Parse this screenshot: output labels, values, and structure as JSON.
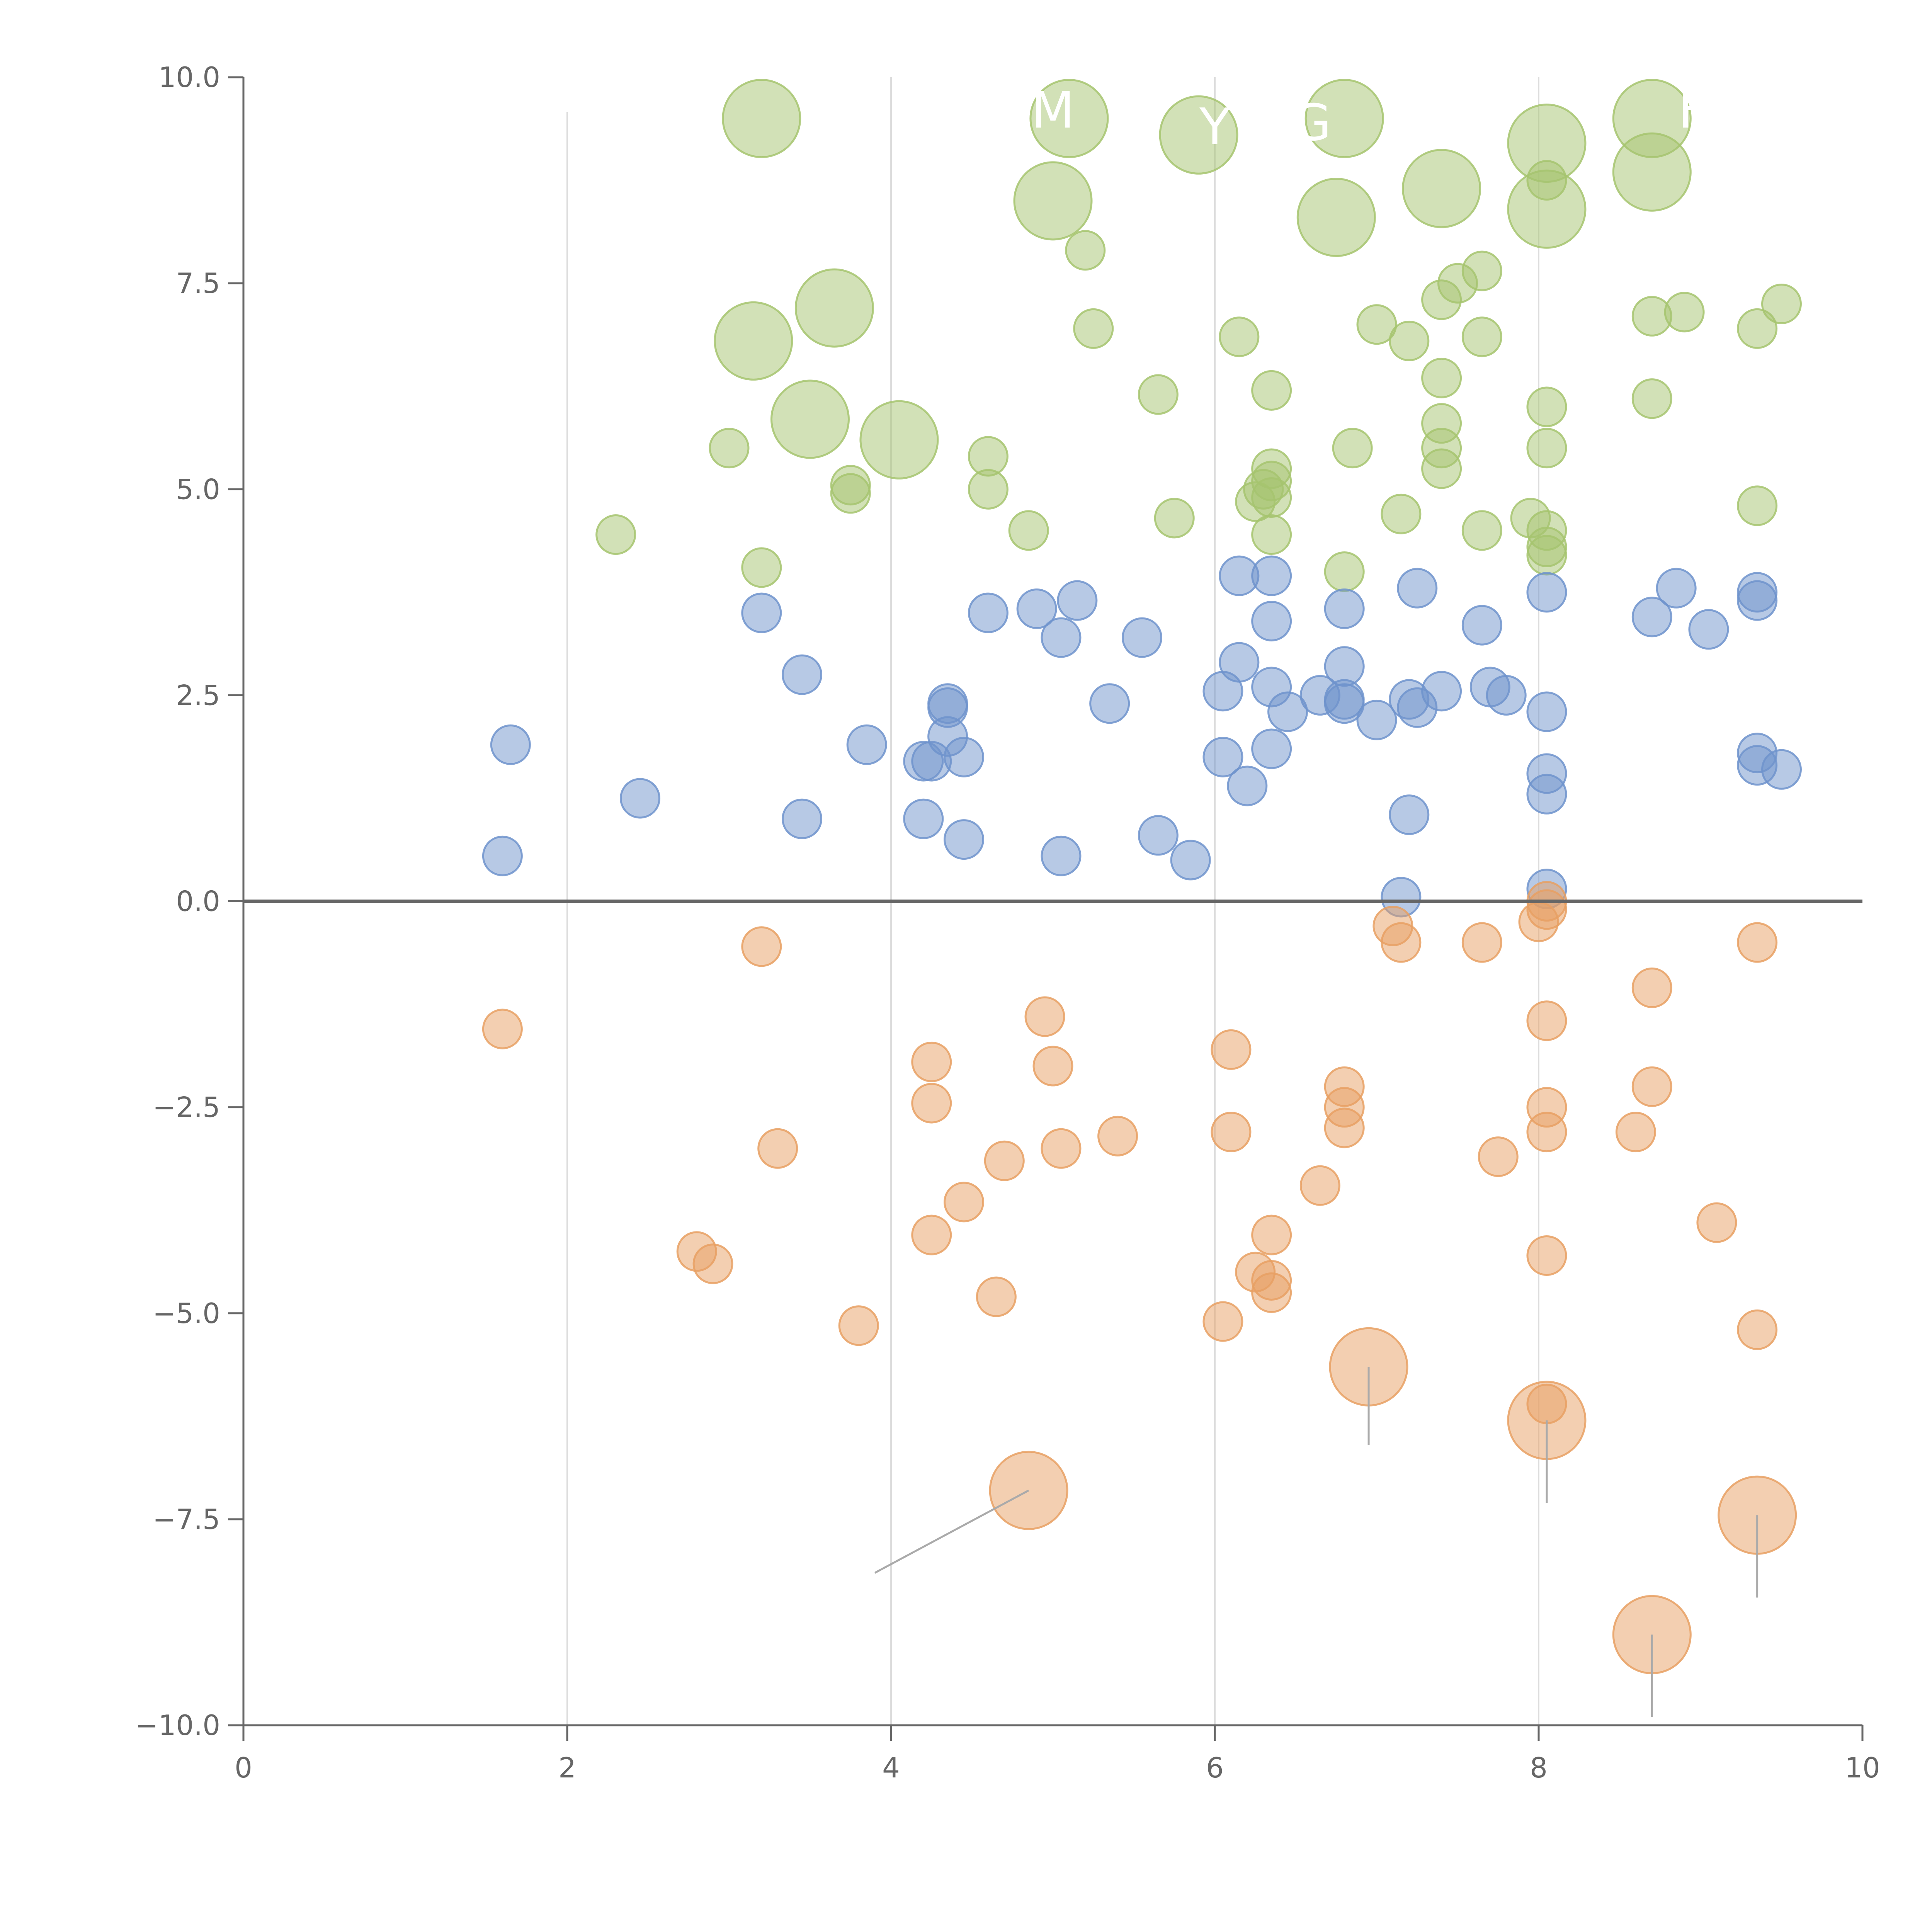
{
  "chart_data": {
    "type": "scatter",
    "title": "",
    "xlabel": "",
    "ylabel": "",
    "xlim": [
      0,
      10
    ],
    "ylim": [
      -10,
      10
    ],
    "x_ticks": [
      "0",
      "2",
      "4",
      "6",
      "8",
      "10"
    ],
    "y_ticks": [
      "−10.0",
      "−7.5",
      "−5.0",
      "−2.5",
      "0.0",
      "2.5",
      "5.0",
      "7.5",
      "10.0"
    ],
    "x_tick_values": [
      0,
      2,
      4,
      6,
      8,
      10
    ],
    "y_tick_values": [
      -10,
      -7.5,
      -5,
      -2.5,
      0,
      2.5,
      5,
      7.5,
      10
    ],
    "vertical_gridlines_at": [
      2,
      4,
      6,
      8
    ],
    "zero_line": 0,
    "colors": {
      "positive_high": "#a6c46f",
      "positive_low": "#6f93cc",
      "negative": "#e8a063",
      "axis": "#666666",
      "grid": "#dddddd",
      "label_leader": "#aaaaaa"
    },
    "series": [
      {
        "name": "green",
        "color": "#a6c46f",
        "points": [
          {
            "x": 3.2,
            "y": 9.5,
            "r": 3
          },
          {
            "x": 5.1,
            "y": 9.5,
            "r": 3
          },
          {
            "x": 5.9,
            "y": 9.3,
            "r": 3
          },
          {
            "x": 6.8,
            "y": 9.5,
            "r": 3
          },
          {
            "x": 8.05,
            "y": 9.2,
            "r": 3
          },
          {
            "x": 8.7,
            "y": 9.5,
            "r": 3
          },
          {
            "x": 8.7,
            "y": 8.85,
            "r": 3
          },
          {
            "x": 5.0,
            "y": 8.5,
            "r": 3
          },
          {
            "x": 7.4,
            "y": 8.65,
            "r": 3
          },
          {
            "x": 8.05,
            "y": 8.4,
            "r": 3
          },
          {
            "x": 6.75,
            "y": 8.3,
            "r": 3
          },
          {
            "x": 8.05,
            "y": 8.75,
            "r": 1
          },
          {
            "x": 5.2,
            "y": 7.9,
            "r": 1
          },
          {
            "x": 3.65,
            "y": 7.2,
            "r": 3
          },
          {
            "x": 3.15,
            "y": 6.8,
            "r": 3
          },
          {
            "x": 5.25,
            "y": 6.95,
            "r": 1
          },
          {
            "x": 6.15,
            "y": 6.85,
            "r": 1
          },
          {
            "x": 7.0,
            "y": 7.0,
            "r": 1
          },
          {
            "x": 7.2,
            "y": 6.8,
            "r": 1
          },
          {
            "x": 7.4,
            "y": 7.3,
            "r": 1
          },
          {
            "x": 7.5,
            "y": 7.5,
            "r": 1
          },
          {
            "x": 7.65,
            "y": 7.65,
            "r": 1
          },
          {
            "x": 7.65,
            "y": 6.85,
            "r": 1
          },
          {
            "x": 8.7,
            "y": 7.1,
            "r": 1
          },
          {
            "x": 8.9,
            "y": 7.15,
            "r": 1
          },
          {
            "x": 9.35,
            "y": 6.95,
            "r": 1
          },
          {
            "x": 9.5,
            "y": 7.25,
            "r": 1
          },
          {
            "x": 3.5,
            "y": 5.85,
            "r": 3
          },
          {
            "x": 4.05,
            "y": 5.6,
            "r": 3
          },
          {
            "x": 3.0,
            "y": 5.5,
            "r": 1
          },
          {
            "x": 5.65,
            "y": 6.15,
            "r": 1
          },
          {
            "x": 6.35,
            "y": 6.2,
            "r": 1
          },
          {
            "x": 7.4,
            "y": 6.35,
            "r": 1
          },
          {
            "x": 8.05,
            "y": 6.0,
            "r": 1
          },
          {
            "x": 8.7,
            "y": 6.1,
            "r": 1
          },
          {
            "x": 7.4,
            "y": 5.8,
            "r": 1
          },
          {
            "x": 6.85,
            "y": 5.5,
            "r": 1
          },
          {
            "x": 7.4,
            "y": 5.5,
            "r": 1
          },
          {
            "x": 8.05,
            "y": 5.5,
            "r": 1
          },
          {
            "x": 4.6,
            "y": 5.4,
            "r": 1
          },
          {
            "x": 3.75,
            "y": 5.05,
            "r": 1
          },
          {
            "x": 3.75,
            "y": 4.95,
            "r": 1
          },
          {
            "x": 4.6,
            "y": 5.0,
            "r": 1
          },
          {
            "x": 6.35,
            "y": 5.25,
            "r": 1
          },
          {
            "x": 6.35,
            "y": 5.1,
            "r": 1
          },
          {
            "x": 6.3,
            "y": 5.0,
            "r": 1
          },
          {
            "x": 6.35,
            "y": 4.9,
            "r": 1
          },
          {
            "x": 6.25,
            "y": 4.85,
            "r": 1
          },
          {
            "x": 7.4,
            "y": 5.25,
            "r": 1
          },
          {
            "x": 2.3,
            "y": 4.45,
            "r": 1
          },
          {
            "x": 4.85,
            "y": 4.5,
            "r": 1
          },
          {
            "x": 5.75,
            "y": 4.65,
            "r": 1
          },
          {
            "x": 6.35,
            "y": 4.45,
            "r": 1
          },
          {
            "x": 7.15,
            "y": 4.7,
            "r": 1
          },
          {
            "x": 7.65,
            "y": 4.5,
            "r": 1
          },
          {
            "x": 7.95,
            "y": 4.65,
            "r": 1
          },
          {
            "x": 8.05,
            "y": 4.5,
            "r": 1
          },
          {
            "x": 8.05,
            "y": 4.3,
            "r": 1
          },
          {
            "x": 8.05,
            "y": 4.2,
            "r": 1
          },
          {
            "x": 9.35,
            "y": 4.8,
            "r": 1
          },
          {
            "x": 3.2,
            "y": 4.05,
            "r": 1
          },
          {
            "x": 6.8,
            "y": 4.0,
            "r": 1
          }
        ]
      },
      {
        "name": "blue",
        "color": "#6f93cc",
        "points": [
          {
            "x": 1.65,
            "y": 1.9,
            "r": 1
          },
          {
            "x": 1.6,
            "y": 0.55,
            "r": 1
          },
          {
            "x": 2.45,
            "y": 1.25,
            "r": 1
          },
          {
            "x": 3.2,
            "y": 3.5,
            "r": 1
          },
          {
            "x": 3.45,
            "y": 2.75,
            "r": 1
          },
          {
            "x": 3.45,
            "y": 1.0,
            "r": 1
          },
          {
            "x": 3.85,
            "y": 1.9,
            "r": 1
          },
          {
            "x": 4.2,
            "y": 1.7,
            "r": 1
          },
          {
            "x": 4.25,
            "y": 1.7,
            "r": 1
          },
          {
            "x": 4.2,
            "y": 1.0,
            "r": 1
          },
          {
            "x": 4.35,
            "y": 2.4,
            "r": 1
          },
          {
            "x": 4.35,
            "y": 2.35,
            "r": 1
          },
          {
            "x": 4.35,
            "y": 2.0,
            "r": 1
          },
          {
            "x": 4.45,
            "y": 1.75,
            "r": 1
          },
          {
            "x": 4.45,
            "y": 0.75,
            "r": 1
          },
          {
            "x": 4.6,
            "y": 3.5,
            "r": 1
          },
          {
            "x": 4.9,
            "y": 3.55,
            "r": 1
          },
          {
            "x": 5.05,
            "y": 3.2,
            "r": 1
          },
          {
            "x": 5.15,
            "y": 3.65,
            "r": 1
          },
          {
            "x": 5.05,
            "y": 0.55,
            "r": 1
          },
          {
            "x": 5.35,
            "y": 2.4,
            "r": 1
          },
          {
            "x": 5.55,
            "y": 3.2,
            "r": 1
          },
          {
            "x": 5.65,
            "y": 0.8,
            "r": 1
          },
          {
            "x": 5.85,
            "y": 0.5,
            "r": 1
          },
          {
            "x": 6.05,
            "y": 2.55,
            "r": 1
          },
          {
            "x": 6.05,
            "y": 1.75,
            "r": 1
          },
          {
            "x": 6.15,
            "y": 3.95,
            "r": 1
          },
          {
            "x": 6.15,
            "y": 2.9,
            "r": 1
          },
          {
            "x": 6.2,
            "y": 1.4,
            "r": 1
          },
          {
            "x": 6.35,
            "y": 3.95,
            "r": 1
          },
          {
            "x": 6.35,
            "y": 3.4,
            "r": 1
          },
          {
            "x": 6.35,
            "y": 2.6,
            "r": 1
          },
          {
            "x": 6.45,
            "y": 2.3,
            "r": 1
          },
          {
            "x": 6.35,
            "y": 1.85,
            "r": 1
          },
          {
            "x": 6.65,
            "y": 2.5,
            "r": 1
          },
          {
            "x": 6.8,
            "y": 3.55,
            "r": 1
          },
          {
            "x": 6.8,
            "y": 2.85,
            "r": 1
          },
          {
            "x": 6.8,
            "y": 2.45,
            "r": 1
          },
          {
            "x": 6.8,
            "y": 2.4,
            "r": 1
          },
          {
            "x": 7.0,
            "y": 2.2,
            "r": 1
          },
          {
            "x": 7.2,
            "y": 1.05,
            "r": 1
          },
          {
            "x": 7.25,
            "y": 3.8,
            "r": 1
          },
          {
            "x": 7.2,
            "y": 2.45,
            "r": 1
          },
          {
            "x": 7.25,
            "y": 2.35,
            "r": 1
          },
          {
            "x": 7.4,
            "y": 2.55,
            "r": 1
          },
          {
            "x": 7.65,
            "y": 3.35,
            "r": 1
          },
          {
            "x": 7.7,
            "y": 2.6,
            "r": 1
          },
          {
            "x": 7.8,
            "y": 2.5,
            "r": 1
          },
          {
            "x": 7.15,
            "y": 0.05,
            "r": 1
          },
          {
            "x": 8.05,
            "y": 3.75,
            "r": 1
          },
          {
            "x": 8.05,
            "y": 2.3,
            "r": 1
          },
          {
            "x": 8.05,
            "y": 1.55,
            "r": 1
          },
          {
            "x": 8.05,
            "y": 1.3,
            "r": 1
          },
          {
            "x": 8.05,
            "y": 0.15,
            "r": 1
          },
          {
            "x": 8.7,
            "y": 3.45,
            "r": 1
          },
          {
            "x": 8.85,
            "y": 3.8,
            "r": 1
          },
          {
            "x": 9.05,
            "y": 3.3,
            "r": 1
          },
          {
            "x": 9.35,
            "y": 3.75,
            "r": 1
          },
          {
            "x": 9.35,
            "y": 3.65,
            "r": 1
          },
          {
            "x": 9.35,
            "y": 1.8,
            "r": 1
          },
          {
            "x": 9.35,
            "y": 1.65,
            "r": 1
          },
          {
            "x": 9.5,
            "y": 1.6,
            "r": 1
          }
        ]
      },
      {
        "name": "orange",
        "color": "#e8a063",
        "points": [
          {
            "x": 1.6,
            "y": -1.55,
            "r": 1
          },
          {
            "x": 2.8,
            "y": -4.25,
            "r": 1
          },
          {
            "x": 2.9,
            "y": -4.4,
            "r": 1
          },
          {
            "x": 3.2,
            "y": -0.55,
            "r": 1
          },
          {
            "x": 3.3,
            "y": -3.0,
            "r": 1
          },
          {
            "x": 3.8,
            "y": -5.15,
            "r": 1
          },
          {
            "x": 4.25,
            "y": -1.95,
            "r": 1
          },
          {
            "x": 4.25,
            "y": -2.45,
            "r": 1
          },
          {
            "x": 4.25,
            "y": -4.05,
            "r": 1
          },
          {
            "x": 4.45,
            "y": -3.65,
            "r": 1
          },
          {
            "x": 4.65,
            "y": -4.8,
            "r": 1
          },
          {
            "x": 4.7,
            "y": -3.15,
            "r": 1
          },
          {
            "x": 4.95,
            "y": -1.4,
            "r": 1
          },
          {
            "x": 5.0,
            "y": -2.0,
            "r": 1
          },
          {
            "x": 5.05,
            "y": -3.0,
            "r": 1
          },
          {
            "x": 5.4,
            "y": -2.85,
            "r": 1
          },
          {
            "x": 4.85,
            "y": -7.15,
            "r": 3
          },
          {
            "x": 6.05,
            "y": -5.1,
            "r": 1
          },
          {
            "x": 6.1,
            "y": -1.8,
            "r": 1
          },
          {
            "x": 6.1,
            "y": -2.8,
            "r": 1
          },
          {
            "x": 6.25,
            "y": -4.5,
            "r": 1
          },
          {
            "x": 6.35,
            "y": -4.05,
            "r": 1
          },
          {
            "x": 6.35,
            "y": -4.6,
            "r": 1
          },
          {
            "x": 6.35,
            "y": -4.75,
            "r": 1
          },
          {
            "x": 6.65,
            "y": -3.45,
            "r": 1
          },
          {
            "x": 6.8,
            "y": -2.25,
            "r": 1
          },
          {
            "x": 6.8,
            "y": -2.5,
            "r": 1
          },
          {
            "x": 6.8,
            "y": -2.75,
            "r": 1
          },
          {
            "x": 6.95,
            "y": -5.65,
            "r": 3
          },
          {
            "x": 7.1,
            "y": -0.3,
            "r": 1
          },
          {
            "x": 7.15,
            "y": -0.5,
            "r": 1
          },
          {
            "x": 7.65,
            "y": -0.5,
            "r": 1
          },
          {
            "x": 7.75,
            "y": -3.1,
            "r": 1
          },
          {
            "x": 8.0,
            "y": -0.25,
            "r": 1
          },
          {
            "x": 8.05,
            "y": -0.1,
            "r": 1
          },
          {
            "x": 8.05,
            "y": 0.0,
            "r": 1
          },
          {
            "x": 8.05,
            "y": -1.45,
            "r": 1
          },
          {
            "x": 8.05,
            "y": -2.5,
            "r": 1
          },
          {
            "x": 8.05,
            "y": -2.8,
            "r": 1
          },
          {
            "x": 8.05,
            "y": -4.3,
            "r": 1
          },
          {
            "x": 8.05,
            "y": -6.3,
            "r": 3
          },
          {
            "x": 8.05,
            "y": -6.1,
            "r": 1
          },
          {
            "x": 8.6,
            "y": -2.8,
            "r": 1
          },
          {
            "x": 8.7,
            "y": -1.05,
            "r": 1
          },
          {
            "x": 8.7,
            "y": -2.25,
            "r": 1
          },
          {
            "x": 8.7,
            "y": -8.9,
            "r": 3
          },
          {
            "x": 9.1,
            "y": -3.9,
            "r": 1
          },
          {
            "x": 9.35,
            "y": -0.5,
            "r": 1
          },
          {
            "x": 9.35,
            "y": -5.2,
            "r": 1
          },
          {
            "x": 9.35,
            "y": -7.45,
            "r": 3
          }
        ]
      }
    ],
    "point_labels": [
      {
        "text": "M",
        "x": 5.0,
        "y": 9.6
      },
      {
        "text": "Y",
        "x": 6.0,
        "y": 9.4
      },
      {
        "text": "G",
        "x": 6.6,
        "y": 9.45
      },
      {
        "text": "F",
        "x": 8.95,
        "y": 9.6
      }
    ],
    "leader_lines": [
      {
        "x1": 4.85,
        "y1": -7.15,
        "x2": 3.9,
        "y2": -8.15
      },
      {
        "x1": 6.95,
        "y1": -5.65,
        "x2": 6.95,
        "y2": -6.6
      },
      {
        "x1": 8.05,
        "y1": -6.3,
        "x2": 8.05,
        "y2": -7.3
      },
      {
        "x1": 8.7,
        "y1": -8.9,
        "x2": 8.7,
        "y2": -9.9
      },
      {
        "x1": 9.35,
        "y1": -7.45,
        "x2": 9.35,
        "y2": -8.45
      }
    ]
  }
}
